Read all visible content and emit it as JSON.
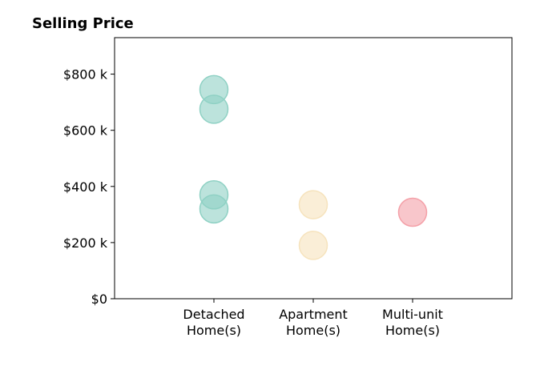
{
  "chart_data": {
    "type": "scatter",
    "title": "Selling Price",
    "xlabel": "",
    "ylabel": "",
    "categories": [
      [
        "Detached",
        "Home(s)"
      ],
      [
        "Apartment",
        "Home(s)"
      ],
      [
        "Multi-unit",
        "Home(s)"
      ]
    ],
    "points": [
      {
        "category": 0,
        "value": 745000
      },
      {
        "category": 0,
        "value": 675000
      },
      {
        "category": 0,
        "value": 370000
      },
      {
        "category": 0,
        "value": 320000
      },
      {
        "category": 1,
        "value": 335000
      },
      {
        "category": 1,
        "value": 190000
      },
      {
        "category": 2,
        "value": 308000
      }
    ],
    "category_colors": [
      "#8fd1c4",
      "#f6e3bd",
      "#f4a0a8"
    ],
    "ylim": [
      0,
      930000
    ],
    "yticks": [
      0,
      200000,
      400000,
      600000,
      800000
    ],
    "ytick_labels": [
      "$0",
      "$200 k",
      "$400 k",
      "$600 k",
      "$800 k"
    ],
    "grid": false,
    "legend": "none"
  }
}
